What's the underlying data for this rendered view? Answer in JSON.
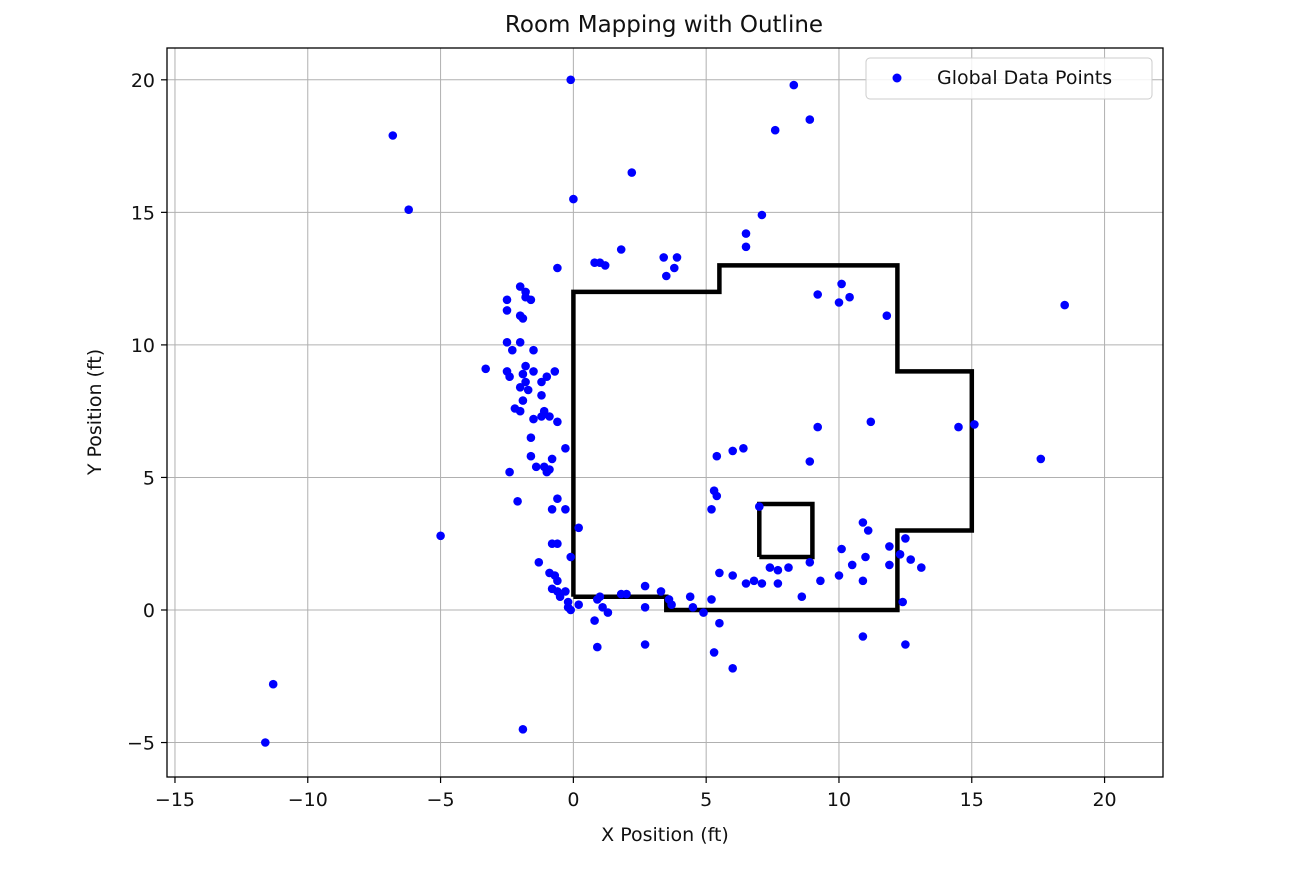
{
  "chart_data": {
    "type": "scatter",
    "title": "Room Mapping with Outline",
    "xlabel": "X Position (ft)",
    "ylabel": "Y Position (ft)",
    "xlim": [
      -15.3,
      22.2
    ],
    "ylim": [
      -6.3,
      21.2
    ],
    "xticks": [
      -15,
      -10,
      -5,
      0,
      5,
      10,
      15,
      20
    ],
    "yticks": [
      -5,
      0,
      5,
      10,
      15,
      20
    ],
    "xtick_labels": [
      "−15",
      "−10",
      "−5",
      "0",
      "5",
      "10",
      "15",
      "20"
    ],
    "ytick_labels": [
      "−5",
      "0",
      "5",
      "10",
      "15",
      "20"
    ],
    "grid": true,
    "legend_position": "top-right",
    "series": [
      {
        "name": "Global Data Points",
        "color": "#0000ff",
        "points": [
          [
            -0.1,
            20.0
          ],
          [
            8.3,
            19.8
          ],
          [
            8.9,
            18.5
          ],
          [
            7.6,
            18.1
          ],
          [
            -6.8,
            17.9
          ],
          [
            2.2,
            16.5
          ],
          [
            0.0,
            15.5
          ],
          [
            -6.2,
            15.1
          ],
          [
            7.1,
            14.9
          ],
          [
            6.5,
            14.2
          ],
          [
            6.5,
            13.7
          ],
          [
            1.8,
            13.6
          ],
          [
            3.4,
            13.3
          ],
          [
            3.9,
            13.3
          ],
          [
            0.8,
            13.1
          ],
          [
            1.0,
            13.1
          ],
          [
            1.2,
            13.0
          ],
          [
            -0.6,
            12.9
          ],
          [
            3.8,
            12.9
          ],
          [
            3.5,
            12.6
          ],
          [
            10.1,
            12.3
          ],
          [
            -2.0,
            12.2
          ],
          [
            -1.8,
            12.0
          ],
          [
            9.2,
            11.9
          ],
          [
            10.4,
            11.8
          ],
          [
            -1.8,
            11.8
          ],
          [
            -1.6,
            11.7
          ],
          [
            -2.5,
            11.7
          ],
          [
            10.0,
            11.6
          ],
          [
            18.5,
            11.5
          ],
          [
            -2.5,
            11.3
          ],
          [
            11.8,
            11.1
          ],
          [
            -2.0,
            11.1
          ],
          [
            -1.9,
            11.0
          ],
          [
            -2.5,
            10.1
          ],
          [
            -2.0,
            10.1
          ],
          [
            -2.3,
            9.8
          ],
          [
            -1.5,
            9.8
          ],
          [
            -1.8,
            9.2
          ],
          [
            -3.3,
            9.1
          ],
          [
            -2.5,
            9.0
          ],
          [
            -1.5,
            9.0
          ],
          [
            -0.7,
            9.0
          ],
          [
            -1.9,
            8.9
          ],
          [
            -2.4,
            8.8
          ],
          [
            -1.0,
            8.8
          ],
          [
            -1.2,
            8.6
          ],
          [
            -1.8,
            8.6
          ],
          [
            -2.0,
            8.4
          ],
          [
            -1.7,
            8.3
          ],
          [
            -1.2,
            8.1
          ],
          [
            -1.9,
            7.9
          ],
          [
            -2.2,
            7.6
          ],
          [
            -2.0,
            7.5
          ],
          [
            -1.1,
            7.5
          ],
          [
            -1.2,
            7.3
          ],
          [
            -0.9,
            7.3
          ],
          [
            -1.5,
            7.2
          ],
          [
            -0.6,
            7.1
          ],
          [
            11.2,
            7.1
          ],
          [
            15.1,
            7.0
          ],
          [
            14.5,
            6.9
          ],
          [
            9.2,
            6.9
          ],
          [
            -1.6,
            6.5
          ],
          [
            6.4,
            6.1
          ],
          [
            6.0,
            6.0
          ],
          [
            -0.3,
            6.1
          ],
          [
            5.4,
            5.8
          ],
          [
            -1.6,
            5.8
          ],
          [
            8.9,
            5.6
          ],
          [
            17.6,
            5.7
          ],
          [
            -0.8,
            5.7
          ],
          [
            -1.4,
            5.4
          ],
          [
            -1.1,
            5.4
          ],
          [
            -0.9,
            5.3
          ],
          [
            -1.0,
            5.2
          ],
          [
            -2.4,
            5.2
          ],
          [
            5.3,
            4.5
          ],
          [
            5.4,
            4.3
          ],
          [
            -0.6,
            4.2
          ],
          [
            -2.1,
            4.1
          ],
          [
            7.0,
            3.9
          ],
          [
            5.2,
            3.8
          ],
          [
            -0.8,
            3.8
          ],
          [
            -0.3,
            3.8
          ],
          [
            10.9,
            3.3
          ],
          [
            11.1,
            3.0
          ],
          [
            0.2,
            3.1
          ],
          [
            -5.0,
            2.8
          ],
          [
            12.5,
            2.7
          ],
          [
            -0.8,
            2.5
          ],
          [
            -0.6,
            2.5
          ],
          [
            11.9,
            2.4
          ],
          [
            10.1,
            2.3
          ],
          [
            12.3,
            2.1
          ],
          [
            -0.1,
            2.0
          ],
          [
            11.0,
            2.0
          ],
          [
            12.7,
            1.9
          ],
          [
            -1.3,
            1.8
          ],
          [
            8.9,
            1.8
          ],
          [
            10.5,
            1.7
          ],
          [
            11.9,
            1.7
          ],
          [
            8.1,
            1.6
          ],
          [
            7.4,
            1.6
          ],
          [
            13.1,
            1.6
          ],
          [
            7.7,
            1.5
          ],
          [
            5.5,
            1.4
          ],
          [
            -0.9,
            1.4
          ],
          [
            -0.7,
            1.3
          ],
          [
            6.0,
            1.3
          ],
          [
            10.0,
            1.3
          ],
          [
            -0.6,
            1.1
          ],
          [
            10.9,
            1.1
          ],
          [
            9.3,
            1.1
          ],
          [
            6.8,
            1.1
          ],
          [
            7.1,
            1.0
          ],
          [
            6.5,
            1.0
          ],
          [
            7.7,
            1.0
          ],
          [
            -0.8,
            0.8
          ],
          [
            2.7,
            0.9
          ],
          [
            -0.6,
            0.7
          ],
          [
            -0.3,
            0.7
          ],
          [
            1.8,
            0.6
          ],
          [
            3.3,
            0.7
          ],
          [
            2.0,
            0.6
          ],
          [
            8.6,
            0.5
          ],
          [
            -0.5,
            0.5
          ],
          [
            4.4,
            0.5
          ],
          [
            1.0,
            0.5
          ],
          [
            0.9,
            0.4
          ],
          [
            5.2,
            0.4
          ],
          [
            3.6,
            0.4
          ],
          [
            12.4,
            0.3
          ],
          [
            -0.2,
            0.3
          ],
          [
            0.2,
            0.2
          ],
          [
            3.7,
            0.2
          ],
          [
            -0.2,
            0.1
          ],
          [
            1.1,
            0.1
          ],
          [
            2.7,
            0.1
          ],
          [
            4.5,
            0.1
          ],
          [
            -0.1,
            0.0
          ],
          [
            4.9,
            -0.1
          ],
          [
            1.3,
            -0.1
          ],
          [
            0.8,
            -0.4
          ],
          [
            5.5,
            -0.5
          ],
          [
            10.9,
            -1.0
          ],
          [
            2.7,
            -1.3
          ],
          [
            12.5,
            -1.3
          ],
          [
            0.9,
            -1.4
          ],
          [
            5.3,
            -1.6
          ],
          [
            6.0,
            -2.2
          ],
          [
            -11.3,
            -2.8
          ],
          [
            -1.9,
            -4.5
          ],
          [
            -11.6,
            -5.0
          ]
        ]
      }
    ],
    "outlines": [
      {
        "name": "room-outline",
        "color": "#000000",
        "points": [
          [
            0.0,
            0.5
          ],
          [
            0.0,
            12.0
          ],
          [
            5.5,
            12.0
          ],
          [
            5.5,
            13.0
          ],
          [
            12.2,
            13.0
          ],
          [
            12.2,
            9.0
          ],
          [
            15.0,
            9.0
          ],
          [
            15.0,
            3.0
          ],
          [
            12.2,
            3.0
          ],
          [
            12.2,
            0.0
          ],
          [
            3.5,
            0.0
          ],
          [
            3.5,
            0.5
          ],
          [
            0.0,
            0.5
          ]
        ]
      },
      {
        "name": "obstacle-outline",
        "color": "#000000",
        "points": [
          [
            7.0,
            2.0
          ],
          [
            7.0,
            4.0
          ],
          [
            9.0,
            4.0
          ],
          [
            9.0,
            2.0
          ],
          [
            7.0,
            2.0
          ]
        ]
      }
    ]
  }
}
